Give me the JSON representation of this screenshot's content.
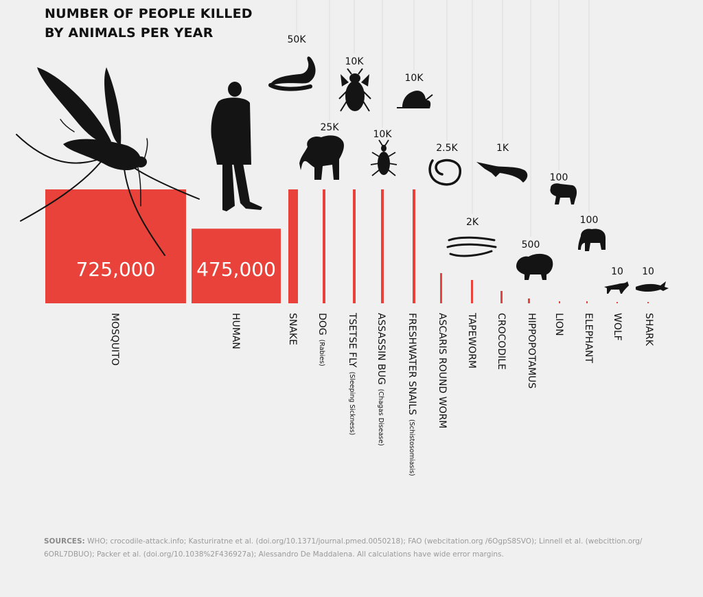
{
  "title_lines": [
    "NUMBER OF PEOPLE KILLED",
    "BY ANIMALS PER YEAR"
  ],
  "colors": {
    "bar": "#e8423a",
    "text": "#111111",
    "silhouette": "#141414",
    "muted": "#9a9a9a"
  },
  "sources": {
    "label": "SOURCES:",
    "line1": "WHO; crocodile-attack.info; Kasturiratne et al. (doi.org/10.1371/journal.pmed.0050218); FAO (webcitation.org /6OgpS8SVO); Linnell et al. (webcittion.org/",
    "line2": "6ORL7DBUO); Packer et al. (doi.org/10.1038%2F436927a); Alessandro De Maddalena.  All calculations have wide error margins."
  },
  "chart_data": {
    "type": "bar",
    "title": "NUMBER OF PEOPLE KILLED BY ANIMALS PER YEAR",
    "categories": [
      "MOSQUITO",
      "HUMAN",
      "SNAKE",
      "DOG",
      "TSETSE FLY",
      "ASSASSIN BUG",
      "FRESHWATER SNAILS",
      "ASCARIS ROUND WORM",
      "TAPEWORM",
      "CROCODILE",
      "HIPPOPOTAMUS",
      "LION",
      "ELEPHANT",
      "WOLF",
      "SHARK"
    ],
    "category_notes": [
      "",
      "",
      "",
      "(Rabies)",
      "(Sleeping Sickness)",
      "(Chagas Disease)",
      "(Schistosomiasis)",
      "",
      "",
      "",
      "",
      "",
      "",
      "",
      ""
    ],
    "values": [
      725000,
      475000,
      50000,
      25000,
      10000,
      10000,
      10000,
      2500,
      2000,
      1000,
      500,
      100,
      100,
      10,
      10
    ],
    "value_labels": [
      "725,000",
      "475,000",
      "50K",
      "25K",
      "10K",
      "10K",
      "10K",
      "2.5K",
      "2K",
      "1K",
      "500",
      "100",
      "100",
      "10",
      "10"
    ],
    "icons": [
      "mosquito-icon",
      "human-icon",
      "snake-icon",
      "dog-icon",
      "tsetse-fly-icon",
      "assassin-bug-icon",
      "snail-icon",
      "roundworm-icon",
      "tapeworm-icon",
      "crocodile-icon",
      "hippopotamus-icon",
      "lion-icon",
      "elephant-icon",
      "wolf-icon",
      "shark-icon"
    ],
    "xlabel": "",
    "ylabel": "",
    "grid": false,
    "legend": "none"
  }
}
